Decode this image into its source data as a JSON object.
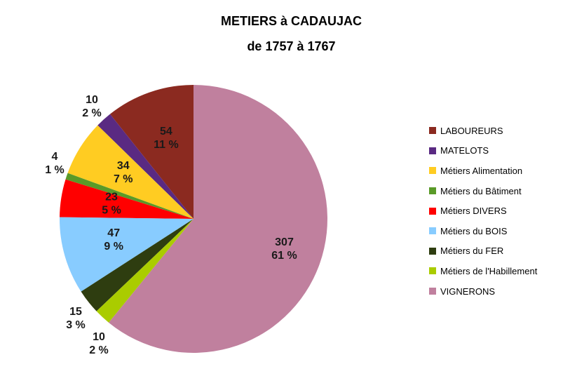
{
  "title_line1": "METIERS à CADAUJAC",
  "title_line2": "de 1757  à  1767",
  "chart_data": {
    "type": "pie",
    "title": "METIERS à CADAUJAC de 1757 à 1767",
    "legend_position": "right",
    "slices": [
      {
        "name": "LABOUREURS",
        "value": 54,
        "percent": "11 %",
        "color": "#8B2A20"
      },
      {
        "name": "MATELOTS",
        "value": 10,
        "percent": "2 %",
        "color": "#5A2A82"
      },
      {
        "name": "Métiers Alimentation",
        "value": 34,
        "percent": "7 %",
        "color": "#FFCC22"
      },
      {
        "name": "Métiers du Bâtiment",
        "value": 4,
        "percent": "1 %",
        "color": "#5A9A28"
      },
      {
        "name": "Métiers DIVERS",
        "value": 23,
        "percent": "5 %",
        "color": "#FF0000"
      },
      {
        "name": "Métiers du BOIS",
        "value": 47,
        "percent": "9 %",
        "color": "#88CCFF"
      },
      {
        "name": "Métiers du FER",
        "value": 15,
        "percent": "3 %",
        "color": "#2E3D10"
      },
      {
        "name": "Métiers de l'Habillement",
        "value": 10,
        "percent": "2 %",
        "color": "#AACC00"
      },
      {
        "name": "VIGNERONS",
        "value": 307,
        "percent": "61 %",
        "color": "#C0809E"
      }
    ]
  }
}
